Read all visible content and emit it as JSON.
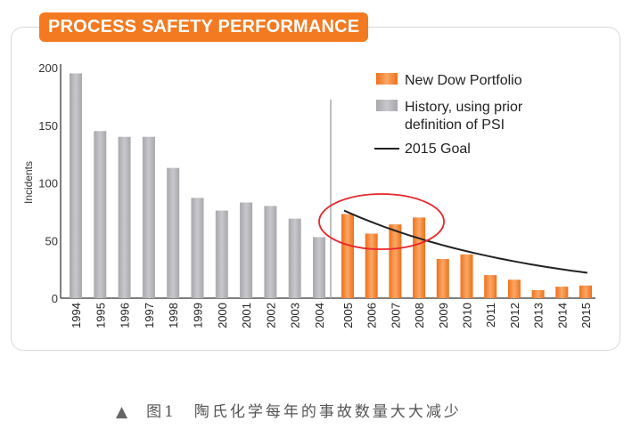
{
  "chart_data": {
    "type": "bar",
    "title": "PROCESS SAFETY PERFORMANCE",
    "ylabel": "Incidents",
    "xlabel": "",
    "ylim": [
      0,
      200
    ],
    "yticks": [
      0,
      50,
      100,
      150,
      200
    ],
    "grid": false,
    "legend_placement": "top-right",
    "series": [
      {
        "name": "History, using prior definition of PSI",
        "color": "#b4b4b8",
        "categories": [
          "1994",
          "1995",
          "1996",
          "1997",
          "1998",
          "1999",
          "2000",
          "2001",
          "2002",
          "2003",
          "2004"
        ],
        "values": [
          195,
          145,
          140,
          140,
          113,
          87,
          76,
          83,
          80,
          69,
          53
        ]
      },
      {
        "name": "New Dow Portfolio",
        "color": "#f37a20",
        "categories": [
          "2005",
          "2006",
          "2007",
          "2008",
          "2009",
          "2010",
          "2011",
          "2012",
          "2013",
          "2014",
          "2015"
        ],
        "values": [
          73,
          56,
          64,
          70,
          34,
          38,
          20,
          16,
          7,
          10,
          11
        ]
      }
    ],
    "goal_line": {
      "name": "2015 Goal",
      "color": "#222222",
      "start": {
        "x": "2005",
        "y": 76
      },
      "end": {
        "x": "2015",
        "y": 22
      }
    },
    "annotation": {
      "type": "ellipse",
      "color": "#e8262b",
      "covers": [
        "2005",
        "2006",
        "2007",
        "2008"
      ]
    },
    "legend": [
      "New Dow Portfolio",
      "History, using prior",
      "definition of PSI",
      "2015 Goal"
    ]
  },
  "caption": {
    "marker": "▲",
    "text": "图1　陶氏化学每年的事故数量大大减少"
  }
}
